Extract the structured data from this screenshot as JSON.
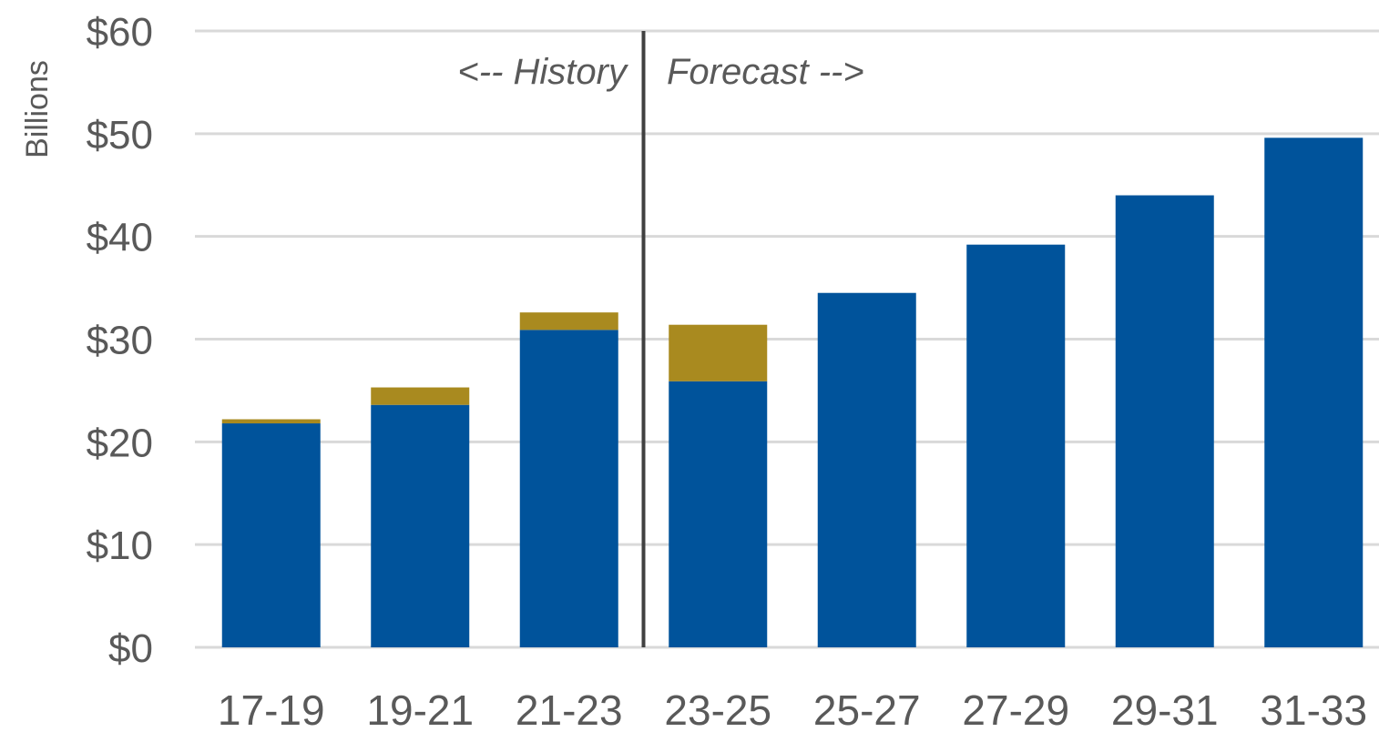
{
  "chart_data": {
    "type": "bar",
    "stacked": true,
    "title": "",
    "xlabel": "",
    "ylabel": "Billions",
    "ylim": [
      0,
      60
    ],
    "yticks": [
      0,
      10,
      20,
      30,
      40,
      50,
      60
    ],
    "ytick_labels": [
      "$0",
      "$10",
      "$20",
      "$30",
      "$40",
      "$50",
      "$60"
    ],
    "categories": [
      "17-19",
      "19-21",
      "21-23",
      "23-25",
      "25-27",
      "27-29",
      "29-31",
      "31-33"
    ],
    "series": [
      {
        "values": [
          21.8,
          23.6,
          30.9,
          25.9,
          34.5,
          39.2,
          44.0,
          49.6
        ],
        "color": "#00539b"
      },
      {
        "values": [
          0.4,
          1.7,
          1.7,
          5.5,
          0,
          0,
          0,
          0
        ],
        "color": "#a98a1f"
      }
    ],
    "grid": true,
    "legend": "none",
    "divider_after_category": "21-23",
    "annotations": {
      "history": "<-- History",
      "forecast": "Forecast -->"
    }
  }
}
